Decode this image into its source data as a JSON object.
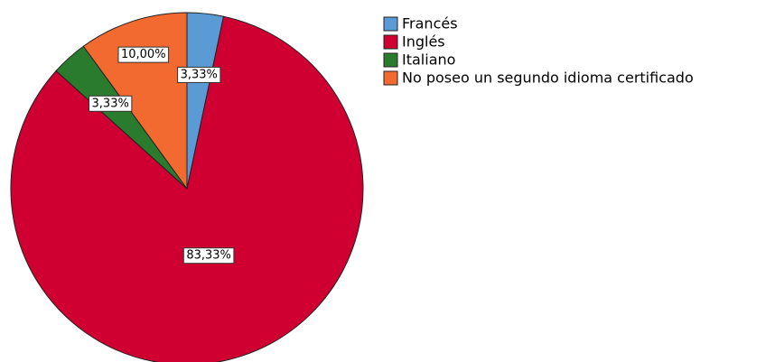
{
  "chart_data": {
    "type": "pie",
    "categories": [
      "Francés",
      "Inglés",
      "Italiano",
      "No poseo un segundo idioma certificado"
    ],
    "values": [
      3.33,
      83.33,
      3.33,
      10
    ],
    "value_labels": [
      "3,33%",
      "83,33%",
      "3,33%",
      "10,00%"
    ],
    "colors": [
      "#5b9bd5",
      "#cf0031",
      "#2a7b2e",
      "#f26a2f"
    ]
  }
}
